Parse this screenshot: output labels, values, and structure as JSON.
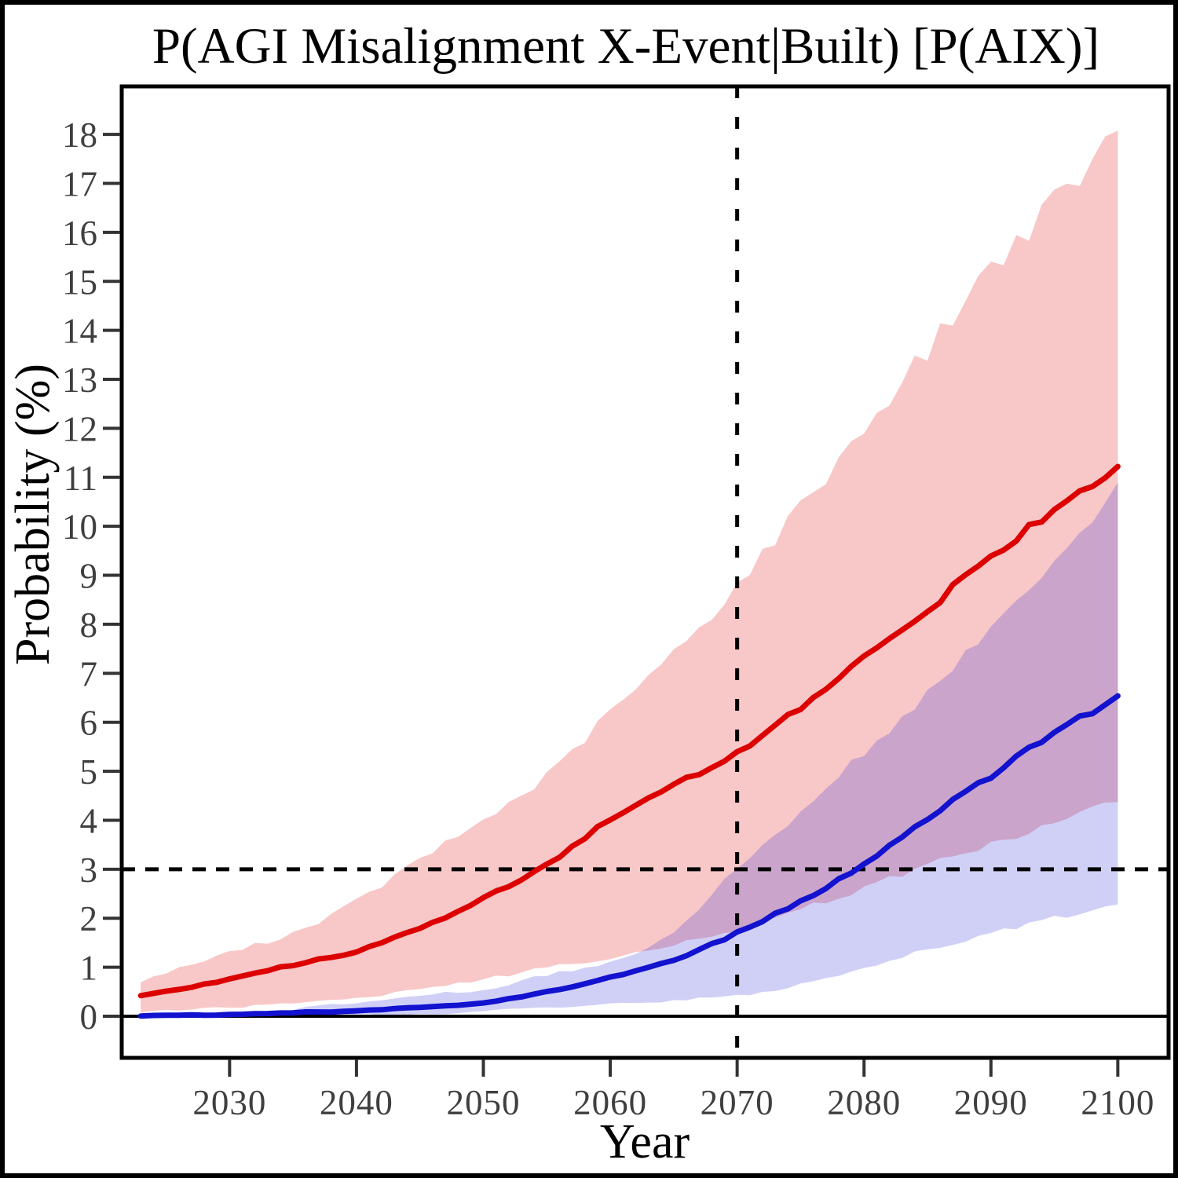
{
  "title": "P(AGI Misalignment X-Event|Built) [P(AIX)]",
  "chart_data": {
    "type": "line",
    "title": "P(AGI Misalignment X-Event|Built) [P(AIX)]",
    "xlabel": "Year",
    "ylabel": "Probability (%)",
    "x_ticks": [
      2030,
      2040,
      2050,
      2060,
      2070,
      2080,
      2090,
      2100
    ],
    "y_ticks": [
      0,
      1,
      2,
      3,
      4,
      5,
      6,
      7,
      8,
      9,
      10,
      11,
      12,
      13,
      14,
      15,
      16,
      17,
      18
    ],
    "x_domain": [
      2021.5,
      2104
    ],
    "y_domain": [
      -0.85,
      18.98
    ],
    "x_start": 2023,
    "x_end": 2100,
    "grid": false,
    "legend": "none",
    "reference_lines": {
      "horizontal_solid_y": 0,
      "horizontal_dashed_y": 3,
      "vertical_dashed_x": 2070
    },
    "series": [
      {
        "name": "red-estimate",
        "description": "Higher P(AIX) median estimate with credible band",
        "line_color": "#dc0000",
        "band_color": "rgba(221,0,0,0.22)",
        "control_years": [
          2023,
          2030,
          2035,
          2040,
          2045,
          2050,
          2055,
          2060,
          2065,
          2070,
          2075,
          2080,
          2085,
          2090,
          2095,
          2100
        ],
        "mid": [
          0.42,
          0.75,
          1.05,
          1.33,
          1.8,
          2.4,
          3.1,
          4.0,
          4.7,
          5.35,
          6.3,
          7.3,
          8.3,
          9.4,
          10.3,
          11.2
        ],
        "lo": [
          0.1,
          0.18,
          0.27,
          0.38,
          0.55,
          0.75,
          1.0,
          1.2,
          1.45,
          1.75,
          2.2,
          2.6,
          3.1,
          3.5,
          3.95,
          4.4
        ],
        "hi": [
          0.72,
          1.3,
          1.7,
          2.35,
          3.2,
          4.0,
          4.9,
          6.2,
          7.4,
          8.8,
          10.4,
          12.0,
          13.6,
          15.3,
          16.6,
          18.0
        ]
      },
      {
        "name": "blue-estimate",
        "description": "Lower P(AIX) median estimate with credible band",
        "line_color": "#1212cf",
        "band_color": "rgba(35,35,215,0.21)",
        "control_years": [
          2023,
          2030,
          2035,
          2040,
          2045,
          2050,
          2055,
          2060,
          2065,
          2070,
          2075,
          2080,
          2085,
          2090,
          2095,
          2100
        ],
        "mid": [
          0.01,
          0.03,
          0.07,
          0.11,
          0.18,
          0.28,
          0.5,
          0.8,
          1.15,
          1.7,
          2.35,
          3.1,
          4.05,
          4.9,
          5.8,
          6.5
        ],
        "lo": [
          0.0,
          0.0,
          0.01,
          0.02,
          0.05,
          0.1,
          0.18,
          0.25,
          0.32,
          0.42,
          0.65,
          1.0,
          1.35,
          1.7,
          2.0,
          2.3
        ],
        "hi": [
          0.02,
          0.08,
          0.15,
          0.28,
          0.42,
          0.55,
          0.85,
          1.1,
          1.75,
          3.0,
          4.2,
          5.4,
          6.6,
          7.9,
          9.3,
          10.8
        ]
      }
    ]
  },
  "colors": {
    "background": "#ffffff",
    "panel_border": "#000000",
    "outer_border": "#000000",
    "tick_mark": "#333333",
    "tick_label": "#3f3f3f",
    "axis_title": "#000000",
    "dashed_line": "#000000",
    "zero_line": "#000000",
    "red_line": "#dc0000",
    "blue_line": "#1212cf",
    "red_band": "rgba(221,0,0,0.22)",
    "blue_band": "rgba(35,35,215,0.21)"
  }
}
